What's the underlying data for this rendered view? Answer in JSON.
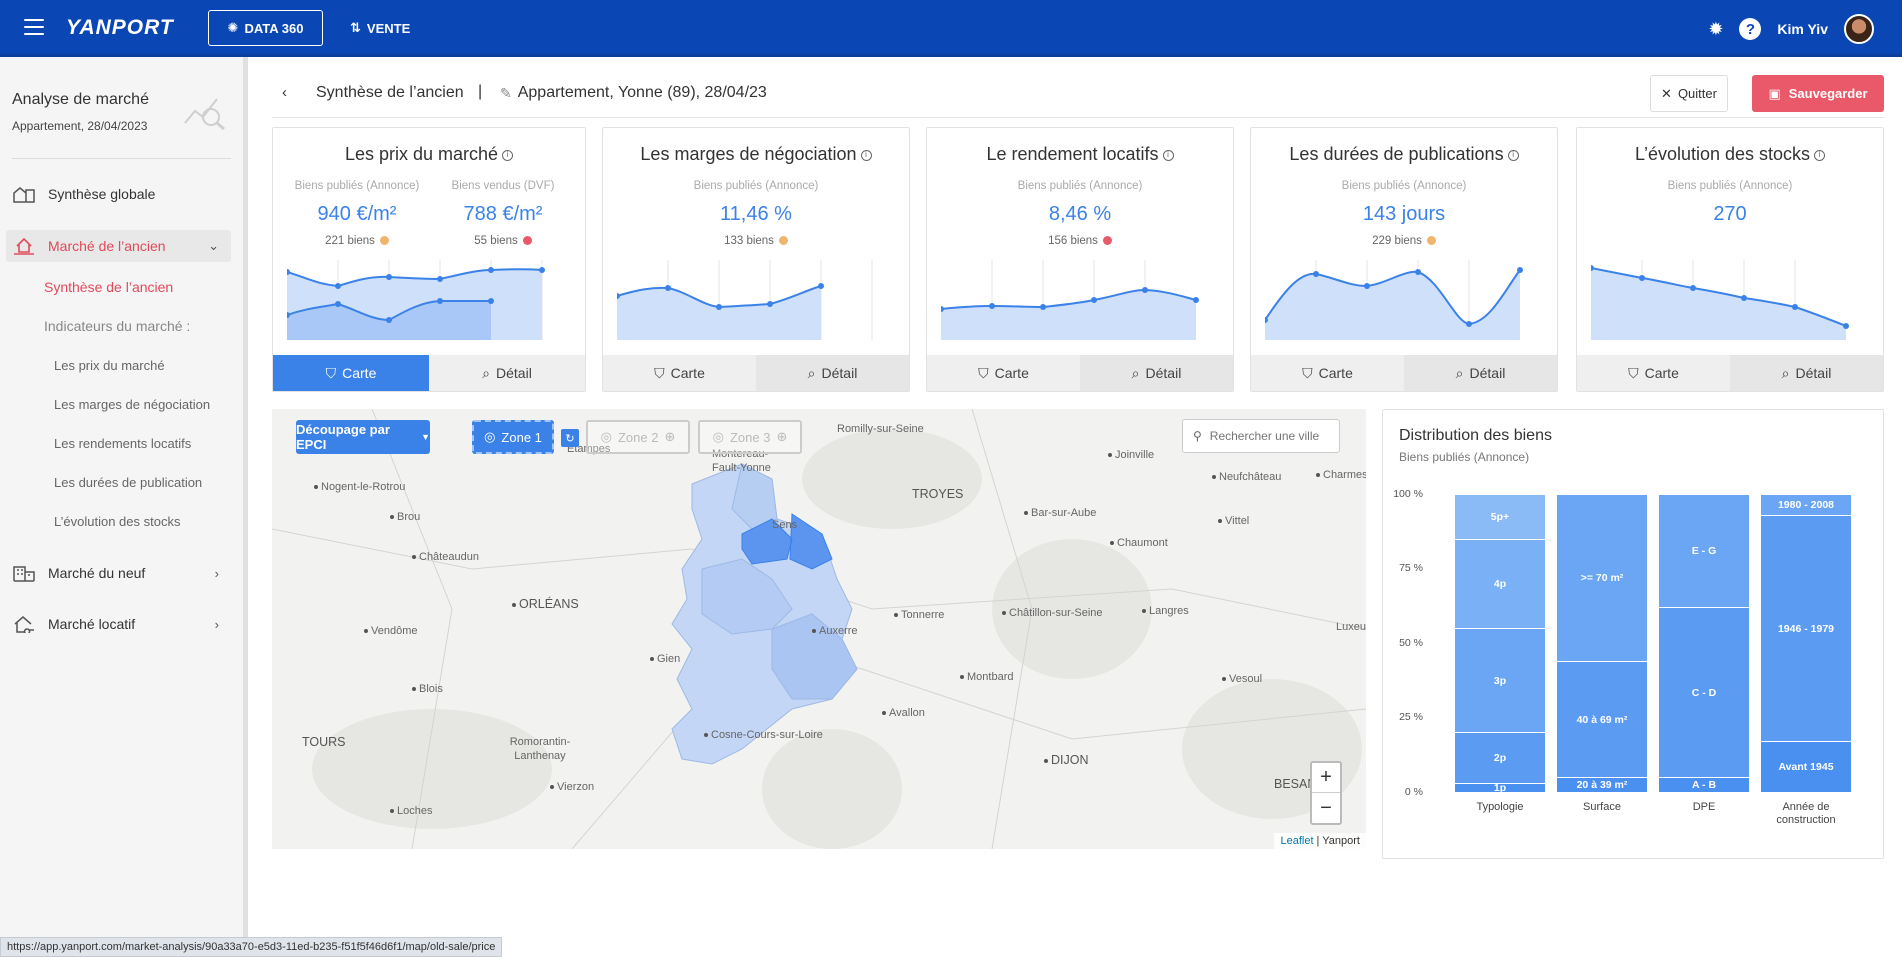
{
  "topbar": {
    "logo": "YANPORT",
    "data360_label": "DATA 360",
    "vente_label": "VENTE",
    "user_name": "Kim Yiv",
    "help_glyph": "?",
    "colors": {
      "primary": "#0a47b5"
    }
  },
  "sidebar": {
    "title": "Analyse de marché",
    "subtitle": "Appartement, 28/04/2023",
    "items": [
      {
        "label": "Synthèse globale",
        "icon": "building-chart-icon"
      },
      {
        "label": "Marché de l’ancien",
        "icon": "house-hand-icon"
      },
      {
        "label": "Marché du neuf",
        "icon": "city-icon"
      },
      {
        "label": "Marché locatif",
        "icon": "house-key-icon"
      }
    ],
    "sub_items": {
      "synthese": "Synthèse de l’ancien",
      "indicateurs": "Indicateurs du marché :",
      "prix": "Les prix du marché",
      "marges": "Les marges de négociation",
      "rendements": "Les rendements locatifs",
      "durees": "Les durées de publication",
      "stocks": "L’évolution des stocks"
    }
  },
  "header": {
    "back_glyph": "‹",
    "breadcrumb": "Synthèse de l’ancien",
    "separator": "|",
    "context": "Appartement, Yonne (89), 28/04/23",
    "quit_label": "Quitter",
    "save_label": "Sauvegarder"
  },
  "cards": [
    {
      "title": "Les prix du marché",
      "columns": [
        {
          "caption": "Biens publiés (Annonce)",
          "value": "940 €/m²",
          "count": "221 biens",
          "dot": "#f0b46a"
        },
        {
          "caption": "Biens vendus (DVF)",
          "value": "788 €/m²",
          "count": "55 biens",
          "dot": "#e9596a"
        }
      ],
      "carte_label": "Carte",
      "detail_label": "Détail"
    },
    {
      "title": "Les marges de négociation",
      "columns": [
        {
          "caption": "Biens publiés (Annonce)",
          "value": "11,46 %",
          "count": "133 biens",
          "dot": "#f0b46a"
        }
      ],
      "carte_label": "Carte",
      "detail_label": "Détail"
    },
    {
      "title": "Le rendement locatifs",
      "columns": [
        {
          "caption": "Biens publiés (Annonce)",
          "value": "8,46 %",
          "count": "156 biens",
          "dot": "#e9596a"
        }
      ],
      "carte_label": "Carte",
      "detail_label": "Détail"
    },
    {
      "title": "Les durées de publications",
      "columns": [
        {
          "caption": "Biens publiés (Annonce)",
          "value": "143 jours",
          "count": "229 biens",
          "dot": "#f0b46a"
        }
      ],
      "carte_label": "Carte",
      "detail_label": "Détail"
    },
    {
      "title": "L’évolution des stocks",
      "columns": [
        {
          "caption": "Biens publiés (Annonce)",
          "value": "270",
          "count": "",
          "dot": ""
        }
      ],
      "carte_label": "Carte",
      "detail_label": "Détail"
    }
  ],
  "map": {
    "decoupage_label": "Découpage par EPCI",
    "zone1_label": "Zone 1",
    "zone2_label": "Zone 2",
    "zone3_label": "Zone 3",
    "search_placeholder": "Rechercher une ville",
    "zoom_in": "+",
    "zoom_out": "−",
    "attribution_link": "Leaflet",
    "attribution_sep": " | ",
    "attribution_text": "Yanport",
    "places": [
      "Romilly-sur-Seine",
      "Étampes",
      "Montereau-Fault-Yonne",
      "Joinville",
      "Nogent-le-Rotrou",
      "TROYES",
      "Neufchâteau",
      "Charmes",
      "Sens",
      "Bar-sur-Aube",
      "Brou",
      "Vittel",
      "Chaumont",
      "Châteaudun",
      "ORLÉANS",
      "Tonnerre",
      "Châtillon-sur-Seine",
      "Langres",
      "Vendôme",
      "Auxerre",
      "Gien",
      "Montbard",
      "Vesoul",
      "Blois",
      "Avallon",
      "TOURS",
      "Romorantin-Lanthenay",
      "Cosne-Cours-sur-Loire",
      "DIJON",
      "Vierzon",
      "BESANÇ",
      "Loches",
      "Luxeu"
    ]
  },
  "distribution": {
    "title": "Distribution des biens",
    "subtitle": "Biens publiés (Annonce)",
    "yticks": [
      "100 %",
      "75 %",
      "50 %",
      "25 %",
      "0 %"
    ]
  },
  "chart_data": {
    "type": "bar",
    "title": "Distribution des biens",
    "subtitle": "Biens publiés (Annonce)",
    "ylim": [
      0,
      100
    ],
    "categories": [
      "Typologie",
      "Surface",
      "DPE",
      "Année de construction"
    ],
    "stacks": [
      {
        "category": "Typologie",
        "segments": [
          {
            "label": "1p",
            "value": 3
          },
          {
            "label": "2p",
            "value": 17
          },
          {
            "label": "3p",
            "value": 35
          },
          {
            "label": "4p",
            "value": 30
          },
          {
            "label": "5p+",
            "value": 15
          }
        ]
      },
      {
        "category": "Surface",
        "segments": [
          {
            "label": "20 à 39 m²",
            "value": 5
          },
          {
            "label": "40 à 69 m²",
            "value": 39
          },
          {
            "label": ">= 70 m²",
            "value": 56
          }
        ]
      },
      {
        "category": "DPE",
        "segments": [
          {
            "label": "A - B",
            "value": 5
          },
          {
            "label": "C - D",
            "value": 57
          },
          {
            "label": "E - G",
            "value": 38
          }
        ]
      },
      {
        "category": "Année de construction",
        "segments": [
          {
            "label": "Avant 1945",
            "value": 17
          },
          {
            "label": "1946 - 1979",
            "value": 76
          },
          {
            "label": "1980 - 2008",
            "value": 7
          }
        ]
      }
    ],
    "colors": [
      "#4a90f0",
      "#5b9bf2",
      "#6aa6f4",
      "#79b0f6",
      "#8bbbf7"
    ]
  },
  "status_url": "https://app.yanport.com/market-analysis/90a33a70-e5d3-11ed-b235-f51f5f46d6f1/map/old-sale/price"
}
